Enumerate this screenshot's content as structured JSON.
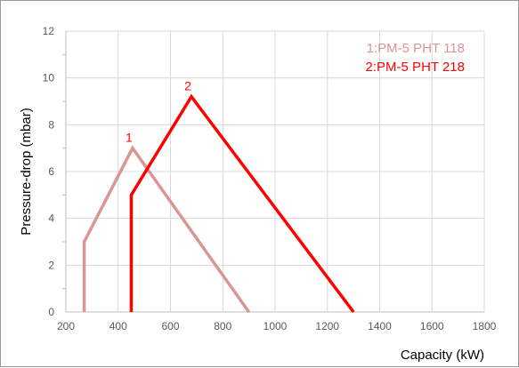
{
  "chart_data": {
    "type": "line",
    "title": "",
    "xlabel": "Capacity (kW)",
    "ylabel": "Pressure-drop (mbar)",
    "xlim": [
      200,
      1800
    ],
    "ylim": [
      0,
      12
    ],
    "xticks": [
      200,
      400,
      600,
      800,
      1000,
      1200,
      1400,
      1600,
      1800
    ],
    "yticks": [
      0,
      2,
      4,
      6,
      8,
      10,
      12
    ],
    "grid": true,
    "legend_position": "top-right",
    "series": [
      {
        "name": "1:PM-5 PHT 118",
        "color": "#d99694",
        "peak_label": "1",
        "points": [
          [
            270,
            0
          ],
          [
            270,
            3
          ],
          [
            455,
            7
          ],
          [
            900,
            0
          ]
        ]
      },
      {
        "name": "2:PM-5 PHT 218",
        "color": "#ff0000",
        "peak_label": "2",
        "points": [
          [
            450,
            0
          ],
          [
            450,
            5
          ],
          [
            680,
            9.2
          ],
          [
            1300,
            0
          ]
        ]
      }
    ]
  }
}
